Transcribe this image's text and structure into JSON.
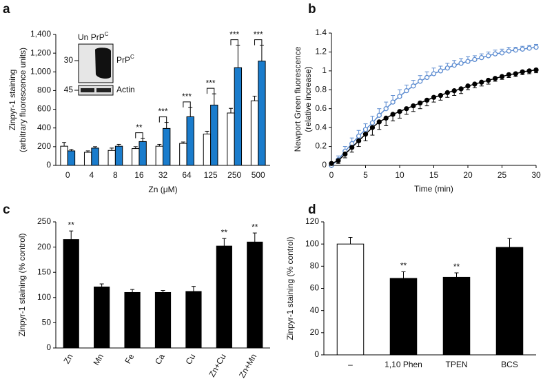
{
  "chart_data": [
    {
      "type": "bar",
      "panel": "a",
      "ylabel": [
        "Zinpyr-1 staining",
        "(arbitrary fluorescence units)"
      ],
      "xlabel": "Zn (μM)",
      "categories": [
        "0",
        "4",
        "8",
        "16",
        "32",
        "64",
        "125",
        "250",
        "500"
      ],
      "series": [
        {
          "color": "#ffffff",
          "values": [
            205,
            140,
            160,
            180,
            205,
            235,
            335,
            560,
            690
          ],
          "errors": [
            40,
            15,
            25,
            20,
            20,
            15,
            30,
            50,
            50
          ]
        },
        {
          "color": "#1a7ccc",
          "values": [
            155,
            185,
            205,
            255,
            395,
            520,
            645,
            1045,
            1115
          ],
          "errors": [
            15,
            15,
            20,
            35,
            65,
            100,
            120,
            240,
            170
          ]
        }
      ],
      "significance": [
        null,
        null,
        null,
        "**",
        "***",
        "***",
        "***",
        "***",
        "***"
      ],
      "ylim": [
        0,
        1400
      ],
      "yticks": [
        0,
        200,
        400,
        600,
        800,
        {
          "value": 1000,
          "label": "1,000"
        },
        {
          "value": 1200,
          "label": "1,200"
        },
        {
          "value": 1400,
          "label": "1,400"
        }
      ],
      "inset": {
        "lanes": [
          {
            "base": "Un"
          },
          {
            "base": "PrP",
            "sup": "C"
          }
        ],
        "markers": [
          "30",
          "45"
        ],
        "bands": [
          {
            "base": "PrP",
            "sup": "C"
          },
          {
            "base": "Actin"
          }
        ]
      }
    },
    {
      "type": "line",
      "panel": "b",
      "ylabel": [
        "Newport Green fluorescence",
        "(relative increase)"
      ],
      "xlabel": "Time (min)",
      "x": [
        0,
        1,
        2,
        3,
        4,
        5,
        6,
        7,
        8,
        9,
        10,
        11,
        12,
        13,
        14,
        15,
        16,
        17,
        18,
        19,
        20,
        21,
        22,
        23,
        24,
        25,
        26,
        27,
        28,
        29,
        30
      ],
      "series": [
        {
          "color": "#5b8bd0",
          "marker": "open",
          "errors_side": "up",
          "values": [
            0.0,
            0.06,
            0.15,
            0.23,
            0.31,
            0.38,
            0.45,
            0.53,
            0.6,
            0.67,
            0.73,
            0.79,
            0.84,
            0.89,
            0.93,
            0.97,
            1.0,
            1.03,
            1.06,
            1.08,
            1.1,
            1.12,
            1.14,
            1.16,
            1.18,
            1.19,
            1.21,
            1.22,
            1.23,
            1.24,
            1.25
          ],
          "errors": [
            0.02,
            0.04,
            0.05,
            0.06,
            0.06,
            0.06,
            0.07,
            0.07,
            0.07,
            0.07,
            0.07,
            0.06,
            0.06,
            0.06,
            0.06,
            0.06,
            0.05,
            0.05,
            0.05,
            0.05,
            0.05,
            0.04,
            0.04,
            0.04,
            0.04,
            0.04,
            0.04,
            0.03,
            0.03,
            0.03,
            0.03
          ]
        },
        {
          "color": "#000000",
          "marker": "filled",
          "errors_side": "down",
          "values": [
            0.02,
            0.05,
            0.12,
            0.19,
            0.26,
            0.33,
            0.4,
            0.46,
            0.5,
            0.54,
            0.57,
            0.6,
            0.63,
            0.66,
            0.69,
            0.72,
            0.74,
            0.77,
            0.79,
            0.81,
            0.84,
            0.86,
            0.88,
            0.9,
            0.92,
            0.94,
            0.96,
            0.97,
            0.99,
            1.0,
            1.01
          ],
          "errors": [
            0.02,
            0.03,
            0.04,
            0.05,
            0.06,
            0.07,
            0.08,
            0.08,
            0.08,
            0.07,
            0.07,
            0.06,
            0.06,
            0.06,
            0.06,
            0.05,
            0.05,
            0.05,
            0.05,
            0.05,
            0.04,
            0.04,
            0.04,
            0.04,
            0.03,
            0.03,
            0.03,
            0.03,
            0.03,
            0.03,
            0.03
          ]
        }
      ],
      "xlim": [
        0,
        30
      ],
      "xticks": [
        0,
        5,
        10,
        15,
        20,
        25,
        30
      ],
      "ylim": [
        0,
        1.4
      ],
      "yticks": [
        0,
        0.2,
        0.4,
        0.6,
        0.8,
        1,
        1.2,
        1.4
      ]
    },
    {
      "type": "bar",
      "panel": "c",
      "ylabel": [
        "Zinpyr-1 staining (% control)"
      ],
      "categories": [
        "Zn",
        "Mn",
        "Fe",
        "Ca",
        "Cu",
        "Zn+Cu",
        "Zn+Mn"
      ],
      "series": [
        {
          "color": "#000000",
          "values": [
            215,
            121,
            110,
            110,
            112,
            202,
            210
          ],
          "errors": [
            17,
            6,
            6,
            4,
            10,
            15,
            18
          ]
        }
      ],
      "significance": [
        "**",
        null,
        null,
        null,
        null,
        "**",
        "**"
      ],
      "ylim": [
        0,
        250
      ],
      "yticks": [
        0,
        50,
        100,
        150,
        200,
        250
      ]
    },
    {
      "type": "bar",
      "panel": "d",
      "ylabel": [
        "Zinpyr-1 staining (% control)"
      ],
      "categories": [
        "–",
        "1,10 Phen",
        "TPEN",
        "BCS"
      ],
      "series": [
        {
          "colors": [
            "#ffffff",
            "#000000",
            "#000000",
            "#000000"
          ],
          "values": [
            100,
            69,
            70,
            97
          ],
          "errors": [
            6,
            6,
            4,
            8
          ]
        }
      ],
      "significance": [
        null,
        "**",
        "**",
        null
      ],
      "ylim": [
        0,
        120
      ],
      "yticks": [
        0,
        20,
        40,
        60,
        80,
        100,
        120
      ]
    }
  ]
}
